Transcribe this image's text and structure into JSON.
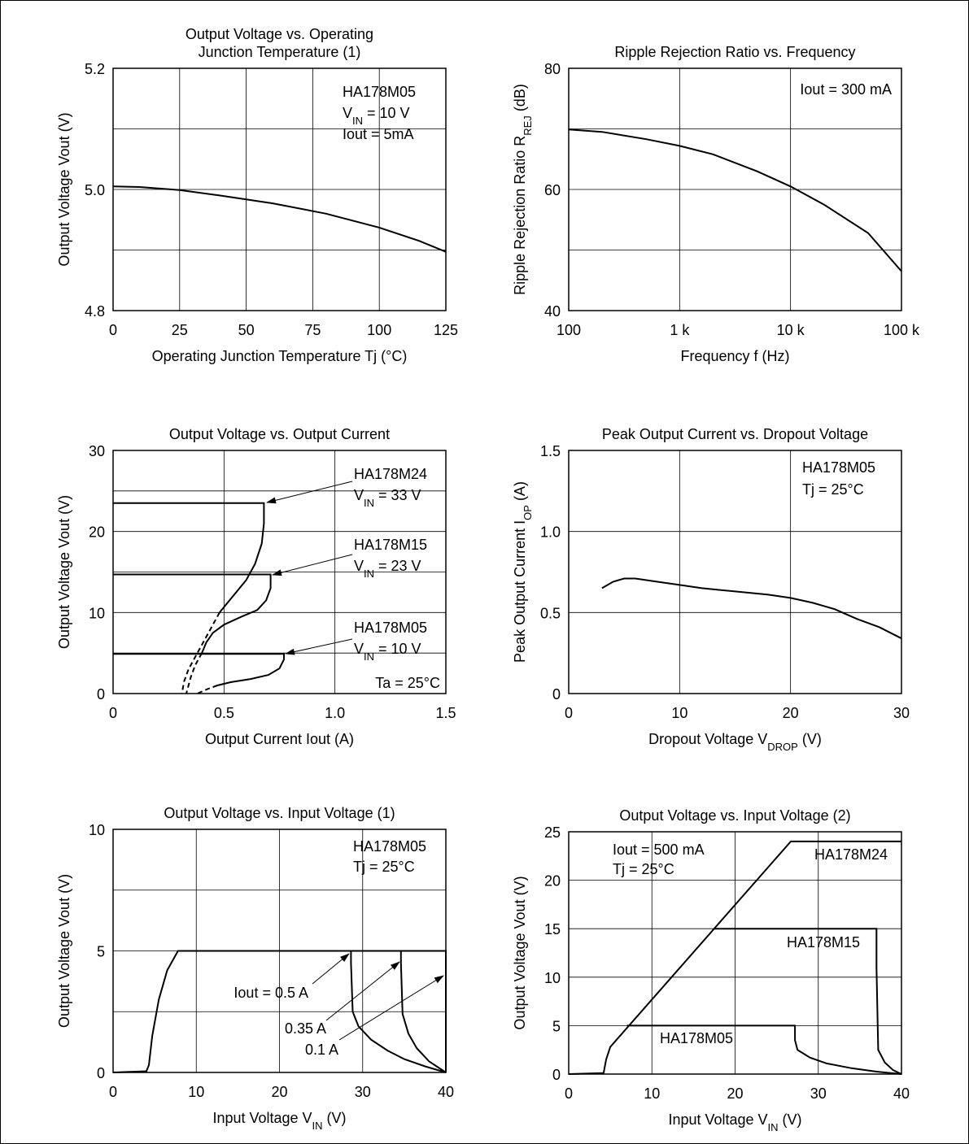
{
  "chart_data": [
    {
      "type": "line",
      "title_lines": [
        "Output Voltage vs. Operating",
        "Junction Temperature  (1)"
      ],
      "xlabel": "Operating Junction Temperature  Tj  (°C)",
      "ylabel": "Output Voltage  Vout  (V)",
      "xlim": [
        0,
        125
      ],
      "ylim": [
        4.8,
        5.2
      ],
      "xticks": [
        0,
        25,
        50,
        75,
        100,
        125
      ],
      "xtick_labels": [
        "0",
        "25",
        "50",
        "75",
        "100",
        "125"
      ],
      "yticks": [
        4.8,
        5.0,
        5.2
      ],
      "ytick_labels": [
        "4.8",
        "5.0",
        "5.2"
      ],
      "ygrid": [
        4.9,
        5.0,
        5.1
      ],
      "grid": true,
      "annotations": [
        {
          "text": "HA178M05"
        },
        {
          "text": "V",
          "sub": "IN",
          "after": " = 10 V"
        },
        {
          "text": "Iout = 5mA"
        }
      ],
      "series": [
        {
          "x": [
            0,
            10,
            25,
            40,
            60,
            80,
            100,
            115,
            125
          ],
          "y": [
            5.005,
            5.004,
            4.999,
            4.99,
            4.977,
            4.96,
            4.937,
            4.915,
            4.897
          ]
        }
      ]
    },
    {
      "type": "line",
      "title_lines": [
        "Ripple Rejection Ratio vs. Frequency"
      ],
      "xlabel": "Frequency  f  (Hz)",
      "ylabel": "Ripple Rejection Ratio  R",
      "ylabel_sub": "REJ",
      "ylabel_after": "  (dB)",
      "xscale": "log",
      "xlim": [
        100,
        100000
      ],
      "ylim": [
        40,
        80
      ],
      "xticks": [
        100,
        1000,
        10000,
        100000
      ],
      "xtick_labels": [
        "100",
        "1 k",
        "10 k",
        "100 k"
      ],
      "yticks": [
        40,
        60,
        80
      ],
      "ytick_labels": [
        "40",
        "60",
        "80"
      ],
      "ygrid": [
        50,
        60,
        70
      ],
      "grid": true,
      "annotations": [
        {
          "text": "Iout = 300 mA"
        }
      ],
      "series": [
        {
          "x": [
            100,
            200,
            500,
            1000,
            2000,
            5000,
            10000,
            20000,
            50000,
            100000
          ],
          "y": [
            69.9,
            69.5,
            68.3,
            67.2,
            65.8,
            63.0,
            60.5,
            57.5,
            52.8,
            46.5
          ]
        }
      ]
    },
    {
      "type": "line",
      "title_lines": [
        "Output Voltage vs. Output Current"
      ],
      "xlabel": "Output Current  Iout  (A)",
      "ylabel": "Output Voltage  Vout  (V)",
      "xlim": [
        0,
        1.5
      ],
      "ylim": [
        0,
        30
      ],
      "xticks": [
        0,
        0.5,
        1.0,
        1.5
      ],
      "xtick_labels": [
        "0",
        "0.5",
        "1.0",
        "1.5"
      ],
      "yticks": [
        0,
        10,
        20,
        30
      ],
      "ytick_labels": [
        "0",
        "10",
        "20",
        "30"
      ],
      "xgrid": [
        0.5,
        1.0
      ],
      "ygrid": [
        5,
        10,
        15,
        20,
        25
      ],
      "grid": true,
      "annotations": [
        {
          "text": "HA178M24"
        },
        {
          "text": "V",
          "sub": "IN",
          "after": " = 33 V"
        },
        {
          "text": "HA178M15"
        },
        {
          "text": "V",
          "sub": "IN",
          "after": " = 23 V"
        },
        {
          "text": "HA178M05"
        },
        {
          "text": "V",
          "sub": "IN",
          "after": " = 10 V"
        },
        {
          "text": "Ta = 25°C"
        }
      ],
      "series": [
        {
          "name": "HA178M24",
          "solid": {
            "x": [
              0,
              0.68,
              0.68,
              0.67,
              0.64,
              0.6,
              0.54,
              0.48
            ],
            "y": [
              23.5,
              23.5,
              21,
              18.5,
              16,
              14,
              12,
              10
            ]
          },
          "dashed": {
            "x": [
              0.48,
              0.43,
              0.38,
              0.34,
              0.32,
              0.31
            ],
            "y": [
              10,
              7.5,
              5,
              3,
              1.5,
              0
            ]
          }
        },
        {
          "name": "HA178M15",
          "solid": {
            "x": [
              0,
              0.71,
              0.71,
              0.69,
              0.65,
              0.58,
              0.5,
              0.45,
              0.42,
              0.4
            ],
            "y": [
              14.7,
              14.7,
              13,
              11.5,
              10.3,
              9.5,
              8.5,
              7.5,
              6.3,
              5
            ]
          },
          "dashed": {
            "x": [
              0.4,
              0.37,
              0.35,
              0.34,
              0.33
            ],
            "y": [
              5,
              3.5,
              2,
              1,
              0
            ]
          }
        },
        {
          "name": "HA178M05",
          "solid": {
            "x": [
              0,
              0.77,
              0.77,
              0.75,
              0.7,
              0.62,
              0.53,
              0.47
            ],
            "y": [
              4.9,
              4.9,
              4.2,
              3.1,
              2.3,
              1.8,
              1.4,
              1.0
            ]
          },
          "dashed": {
            "x": [
              0.47,
              0.43,
              0.4,
              0.38
            ],
            "y": [
              1.0,
              0.6,
              0.25,
              0
            ]
          }
        }
      ]
    },
    {
      "type": "line",
      "title_lines": [
        "Peak Output Current vs. Dropout Voltage"
      ],
      "xlabel": "Dropout Voltage  V",
      "xlabel_sub": "DROP",
      "xlabel_after": "  (V)",
      "ylabel": "Peak Output Current  I",
      "ylabel_sub": "OP",
      "ylabel_after": "  (A)",
      "xlim": [
        0,
        30
      ],
      "ylim": [
        0,
        1.5
      ],
      "xticks": [
        0,
        10,
        20,
        30
      ],
      "xtick_labels": [
        "0",
        "10",
        "20",
        "30"
      ],
      "yticks": [
        0,
        0.5,
        1.0,
        1.5
      ],
      "ytick_labels": [
        "0",
        "0.5",
        "1.0",
        "1.5"
      ],
      "xgrid": [
        10,
        20
      ],
      "ygrid": [
        0.5,
        1.0
      ],
      "grid": true,
      "annotations": [
        {
          "text": "HA178M05"
        },
        {
          "text": "Tj = 25°C"
        }
      ],
      "series": [
        {
          "x": [
            3,
            4,
            5,
            6,
            7,
            8,
            10,
            12,
            15,
            18,
            20,
            22,
            24,
            25,
            26,
            28,
            30
          ],
          "y": [
            0.65,
            0.69,
            0.71,
            0.71,
            0.7,
            0.69,
            0.67,
            0.65,
            0.63,
            0.61,
            0.59,
            0.56,
            0.52,
            0.49,
            0.46,
            0.41,
            0.34
          ]
        }
      ]
    },
    {
      "type": "line",
      "title_lines": [
        "Output Voltage vs. Input Voltage  (1)"
      ],
      "xlabel": "Input Voltage  V",
      "xlabel_sub": "IN",
      "xlabel_after": "  (V)",
      "ylabel": "Output Voltage  Vout  (V)",
      "xlim": [
        0,
        40
      ],
      "ylim": [
        0,
        10
      ],
      "xticks": [
        0,
        10,
        20,
        30,
        40
      ],
      "xtick_labels": [
        "0",
        "10",
        "20",
        "30",
        "40"
      ],
      "yticks": [
        0,
        5,
        10
      ],
      "ytick_labels": [
        "0",
        "5",
        "10"
      ],
      "xgrid": [
        10,
        20,
        30
      ],
      "ygrid": [
        2.5,
        5,
        7.5
      ],
      "grid": true,
      "annotations": [
        {
          "text": "HA178M05"
        },
        {
          "text": "Tj = 25°C"
        },
        {
          "text": "Iout = 0.5 A"
        },
        {
          "text": "0.35 A"
        },
        {
          "text": "0.1 A"
        }
      ],
      "series": [
        {
          "name": "Iout = 0.5 A",
          "x": [
            0,
            4,
            4.3,
            4.7,
            5.5,
            6.5,
            7.8,
            28.6,
            28.6,
            28.8,
            29.5,
            31,
            33,
            35,
            37.5,
            40
          ],
          "y": [
            0,
            0.05,
            0.3,
            1.5,
            3.0,
            4.2,
            5,
            5,
            4.5,
            2.5,
            1.9,
            1.35,
            0.9,
            0.55,
            0.25,
            0
          ]
        },
        {
          "name": "0.35 A",
          "x": [
            28.6,
            34.6,
            34.6,
            34.8,
            35.5,
            36.5,
            38,
            40
          ],
          "y": [
            5,
            5,
            4.5,
            2.4,
            1.6,
            1.0,
            0.45,
            0
          ]
        },
        {
          "name": "0.1 A",
          "x": [
            34.6,
            40,
            40
          ],
          "y": [
            5,
            5,
            0
          ]
        }
      ]
    },
    {
      "type": "line",
      "title_lines": [
        "Output Voltage vs. Input Voltage  (2)"
      ],
      "xlabel": "Input Voltage  V",
      "xlabel_sub": "IN",
      "xlabel_after": "  (V)",
      "ylabel": "Output Voltage  Vout  (V)",
      "xlim": [
        0,
        40
      ],
      "ylim": [
        0,
        25
      ],
      "xticks": [
        0,
        10,
        20,
        30,
        40
      ],
      "xtick_labels": [
        "0",
        "10",
        "20",
        "30",
        "40"
      ],
      "yticks": [
        0,
        5,
        10,
        15,
        20,
        25
      ],
      "ytick_labels": [
        "0",
        "5",
        "10",
        "15",
        "20",
        "25"
      ],
      "xgrid": [
        10,
        20,
        30
      ],
      "ygrid": [
        5,
        10,
        15,
        20
      ],
      "grid": true,
      "annotations": [
        {
          "text": "Iout = 500 mA"
        },
        {
          "text": "Tj = 25°C"
        },
        {
          "text": "HA178M24"
        },
        {
          "text": "HA178M15"
        },
        {
          "text": "HA178M05"
        }
      ],
      "series": [
        {
          "name": "HA178M24",
          "x": [
            0,
            4.2,
            4.5,
            5,
            26.7,
            40
          ],
          "y": [
            0,
            0.1,
            1.5,
            2.8,
            24,
            24
          ]
        },
        {
          "name": "HA178M15",
          "x": [
            17.5,
            37,
            37,
            37.2,
            38,
            39,
            40
          ],
          "y": [
            15,
            15,
            11,
            2.5,
            1.2,
            0.4,
            0
          ]
        },
        {
          "name": "HA178M05",
          "x": [
            7,
            27.2,
            27.2,
            27.5,
            29,
            31,
            34,
            37,
            40
          ],
          "y": [
            5,
            5,
            3.5,
            2.5,
            1.7,
            1.1,
            0.6,
            0.25,
            0
          ]
        }
      ]
    }
  ]
}
